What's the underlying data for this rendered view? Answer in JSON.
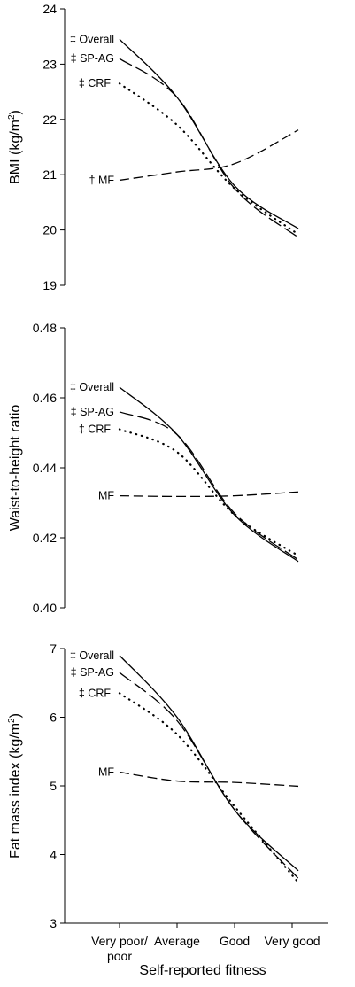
{
  "xaxis": {
    "categories": [
      "Very poor/ poor",
      "Average",
      "Good",
      "Very good"
    ],
    "title": "Self-reported fitness"
  },
  "chart_data": [
    {
      "type": "line",
      "title": "",
      "xlabel": "",
      "ylabel": "BMI (kg/m²)",
      "ylabel_main": "BMI (kg/m",
      "ylabel_sup": "2",
      "ylabel_end": ")",
      "ylim": [
        19,
        24
      ],
      "yticks": [
        "19",
        "20",
        "21",
        "22",
        "23",
        "24"
      ],
      "categories": [
        "Very poor/ poor",
        "Average",
        "Good",
        "Very good"
      ],
      "series": [
        {
          "name": "Overall",
          "marker": "‡",
          "label": "‡ Overall",
          "style": "solid",
          "values": [
            23.45,
            22.4,
            20.8,
            20.1
          ]
        },
        {
          "name": "SP-AG",
          "marker": "‡",
          "label": "‡ SP-AG",
          "style": "longdash",
          "values": [
            23.1,
            22.4,
            20.75,
            19.95
          ]
        },
        {
          "name": "CRF",
          "marker": "‡",
          "label": "‡ CRF",
          "style": "dotted",
          "values": [
            22.65,
            21.9,
            20.75,
            20.0
          ]
        },
        {
          "name": "MF",
          "marker": "†",
          "label": "† MF",
          "style": "dash",
          "values": [
            20.9,
            21.05,
            21.2,
            21.75
          ]
        }
      ]
    },
    {
      "type": "line",
      "title": "",
      "xlabel": "",
      "ylabel": "Waist-to-height ratio",
      "ylabel_main": "Waist-to-height ratio",
      "ylabel_sup": "",
      "ylabel_end": "",
      "ylim": [
        0.4,
        0.48
      ],
      "yticks": [
        "0.40",
        "0.42",
        "0.44",
        "0.46",
        "0.48"
      ],
      "categories": [
        "Very poor/ poor",
        "Average",
        "Good",
        "Very good"
      ],
      "series": [
        {
          "name": "Overall",
          "marker": "‡",
          "label": "‡ Overall",
          "style": "solid",
          "values": [
            0.463,
            0.4495,
            0.4265,
            0.4145
          ]
        },
        {
          "name": "SP-AG",
          "marker": "‡",
          "label": "‡ SP-AG",
          "style": "longdash",
          "values": [
            0.456,
            0.4495,
            0.427,
            0.415
          ]
        },
        {
          "name": "CRF",
          "marker": "‡",
          "label": "‡ CRF",
          "style": "dotted",
          "values": [
            0.451,
            0.4445,
            0.4265,
            0.416
          ]
        },
        {
          "name": "MF",
          "marker": "",
          "label": "MF",
          "style": "dash",
          "values": [
            0.432,
            0.4318,
            0.432,
            0.433
          ]
        }
      ]
    },
    {
      "type": "line",
      "title": "",
      "xlabel": "",
      "ylabel": "Fat mass index (kg/m²)",
      "ylabel_main": "Fat mass index (kg/m",
      "ylabel_sup": "2",
      "ylabel_end": ")",
      "ylim": [
        3,
        7
      ],
      "yticks": [
        "3",
        "4",
        "5",
        "6",
        "7"
      ],
      "categories": [
        "Very poor/ poor",
        "Average",
        "Good",
        "Very good"
      ],
      "series": [
        {
          "name": "Overall",
          "marker": "‡",
          "label": "‡ Overall",
          "style": "solid",
          "values": [
            6.9,
            6.0,
            4.65,
            3.85
          ]
        },
        {
          "name": "SP-AG",
          "marker": "‡",
          "label": "‡ SP-AG",
          "style": "longdash",
          "values": [
            6.65,
            5.95,
            4.65,
            3.75
          ]
        },
        {
          "name": "CRF",
          "marker": "‡",
          "label": "‡ CRF",
          "style": "dotted",
          "values": [
            6.35,
            5.75,
            4.7,
            3.7
          ]
        },
        {
          "name": "MF",
          "marker": "",
          "label": "MF",
          "style": "dash",
          "values": [
            5.2,
            5.07,
            5.05,
            5.0
          ]
        }
      ]
    }
  ],
  "styles": {
    "line_color": "#000000",
    "background": "#ffffff"
  }
}
